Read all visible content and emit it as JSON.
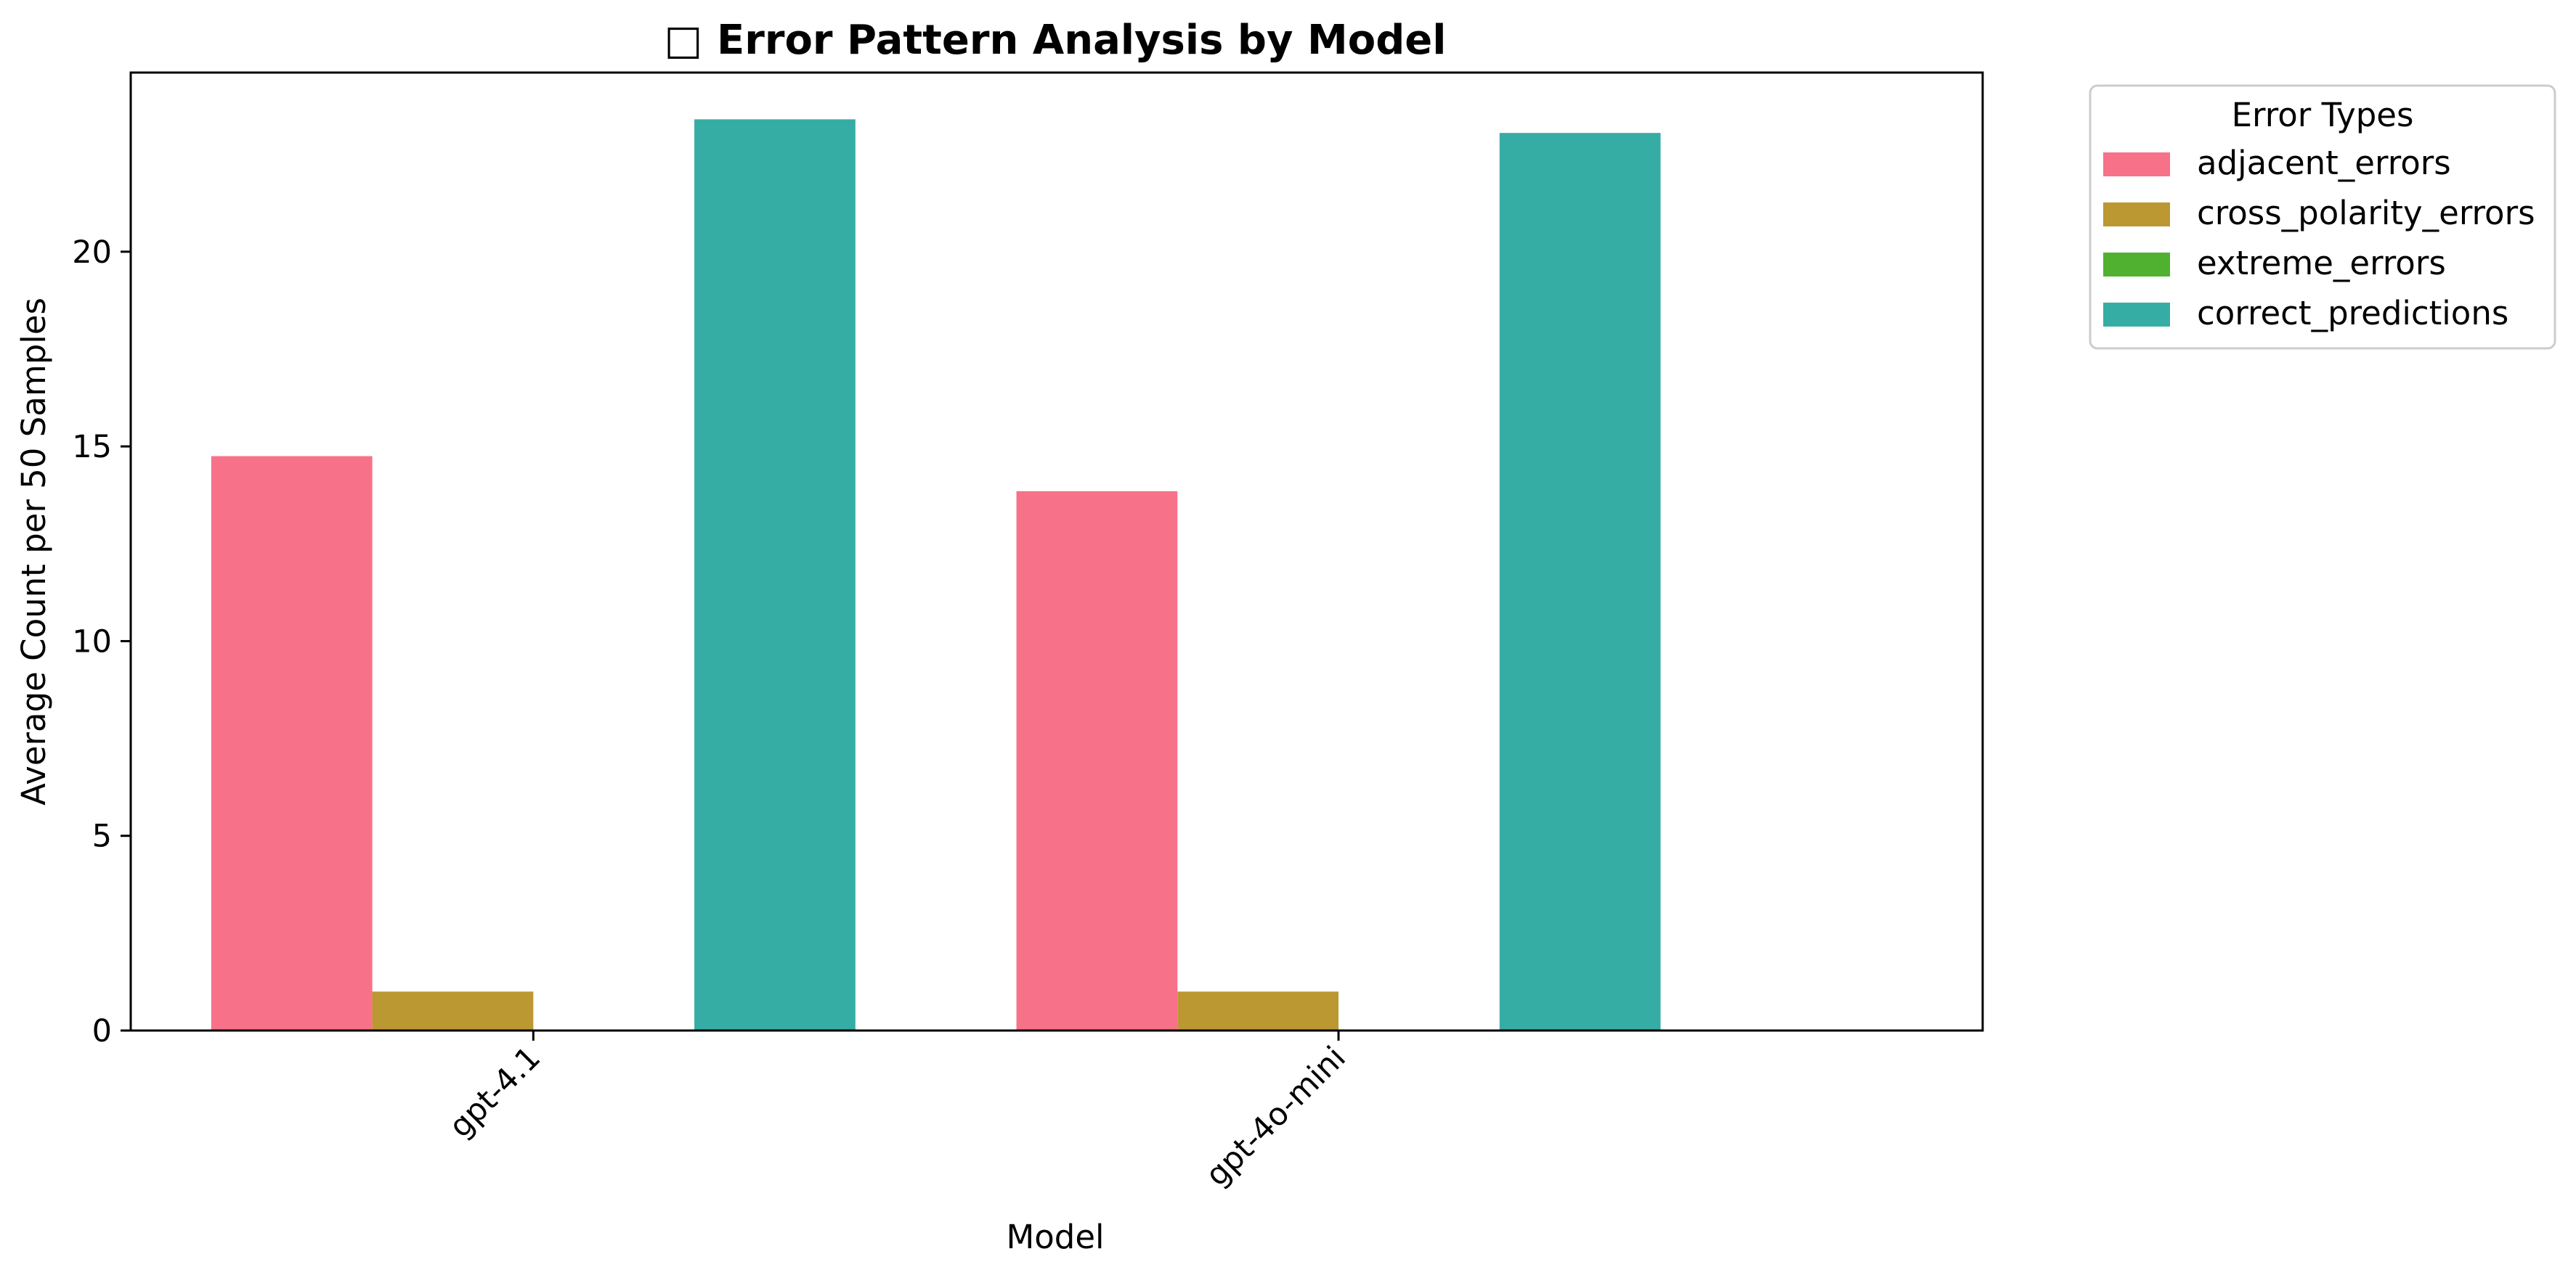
{
  "chart_data": {
    "type": "bar",
    "title": "□ Error Pattern Analysis by Model",
    "xlabel": "Model",
    "ylabel": "Average Count per 50 Samples",
    "categories": [
      "gpt-4.1",
      "gpt-4o-mini"
    ],
    "series": [
      {
        "name": "adjacent_errors",
        "color": "#f77189",
        "values": [
          14.75,
          13.85
        ]
      },
      {
        "name": "cross_polarity_errors",
        "color": "#bb9832",
        "values": [
          1.0,
          1.0
        ]
      },
      {
        "name": "extreme_errors",
        "color": "#50b131",
        "values": [
          0,
          0
        ]
      },
      {
        "name": "correct_predictions",
        "color": "#36ada4",
        "values": [
          23.4,
          23.05
        ]
      }
    ],
    "ylim": [
      0,
      24.6
    ],
    "yticks": [
      0,
      5,
      10,
      15,
      20
    ],
    "xlim": [
      -0.5,
      1.8
    ],
    "legend": {
      "title": "Error Types",
      "placement": "outside-top-right"
    },
    "grid": false
  }
}
